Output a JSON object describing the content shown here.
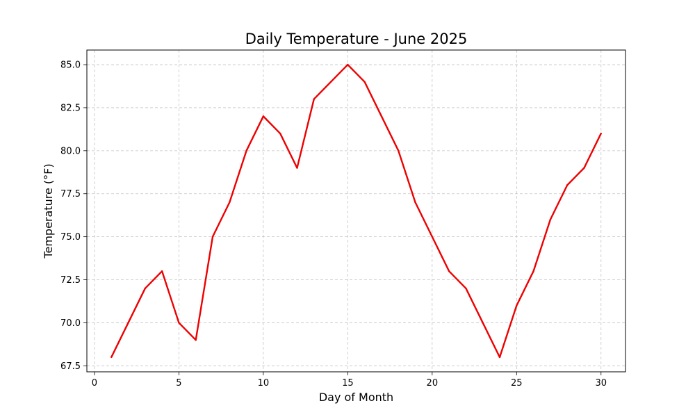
{
  "chart_data": {
    "type": "line",
    "title": "Daily Temperature - June 2025",
    "xlabel": "Day of Month",
    "ylabel": "Temperature (°F)",
    "xlim": [
      -0.45,
      31.45
    ],
    "ylim": [
      67.15,
      85.85
    ],
    "xticks": [
      0,
      5,
      10,
      15,
      20,
      25,
      30
    ],
    "yticks": [
      67.5,
      70.0,
      72.5,
      75.0,
      77.5,
      80.0,
      82.5,
      85.0
    ],
    "xtick_labels": [
      "0",
      "5",
      "10",
      "15",
      "20",
      "25",
      "30"
    ],
    "ytick_labels": [
      "67.5",
      "70.0",
      "72.5",
      "75.0",
      "77.5",
      "80.0",
      "82.5",
      "85.0"
    ],
    "grid": true,
    "series": [
      {
        "color": "#ee0000",
        "x": [
          1,
          2,
          3,
          4,
          5,
          6,
          7,
          8,
          9,
          10,
          11,
          12,
          13,
          14,
          15,
          16,
          17,
          18,
          19,
          20,
          21,
          22,
          23,
          24,
          25,
          26,
          27,
          28,
          29,
          30
        ],
        "y": [
          68,
          70,
          72,
          73,
          70,
          69,
          75,
          77,
          80,
          82,
          81,
          79,
          83,
          84,
          85,
          84,
          82,
          80,
          77,
          75,
          73,
          72,
          70,
          68,
          71,
          73,
          76,
          78,
          79,
          81
        ]
      }
    ]
  }
}
